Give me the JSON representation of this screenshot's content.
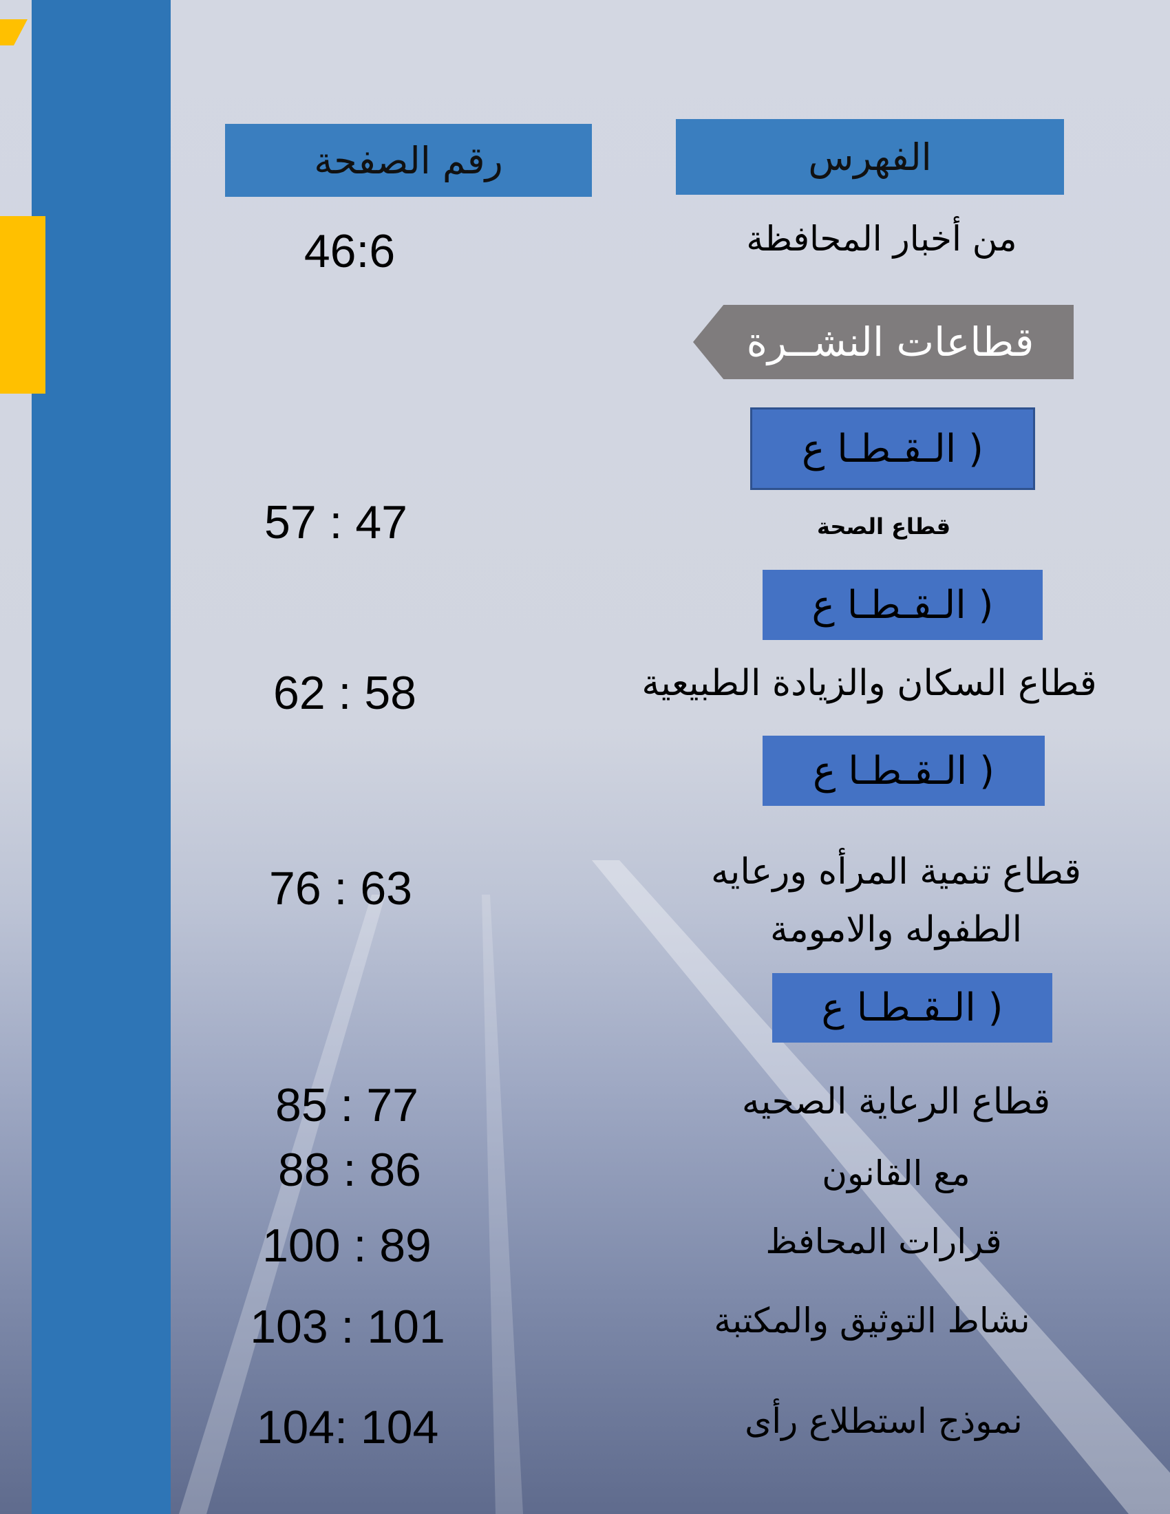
{
  "colors": {
    "sidebar": "#2e75b6",
    "accent_yellow": "#ffc000",
    "header_box": "#3a7ebf",
    "section_box": "#4472c4",
    "sectors_banner": "#7f7c7d"
  },
  "header": {
    "index_title": "الفهرس",
    "page_number_title": "رقم الصفحة"
  },
  "sectors_banner": "قطاعات النشــرة",
  "section_box_label": "( الـقـطـا ع",
  "entries": [
    {
      "title": "من أخبار المحافظة",
      "pages": "46:6"
    },
    {
      "title": "قطاع الصحة",
      "pages": "57 : 47"
    },
    {
      "title": "قطاع السكان والزيادة الطبيعية",
      "pages": "62 : 58"
    },
    {
      "title": "قطاع تنمية المرأه ورعايه",
      "title_line2": "الطفوله والامومة",
      "pages": "76 : 63"
    },
    {
      "title": "قطاع الرعاية الصحيه",
      "pages": "85 : 77"
    },
    {
      "title": "مع القانون",
      "pages": "88 : 86"
    },
    {
      "title": "قرارات المحافظ",
      "pages": "100 : 89"
    },
    {
      "title": "نشاط التوثيق والمكتبة",
      "pages": "103 : 101"
    },
    {
      "title": "نموذج استطلاع رأى",
      "pages": "104: 104"
    }
  ]
}
